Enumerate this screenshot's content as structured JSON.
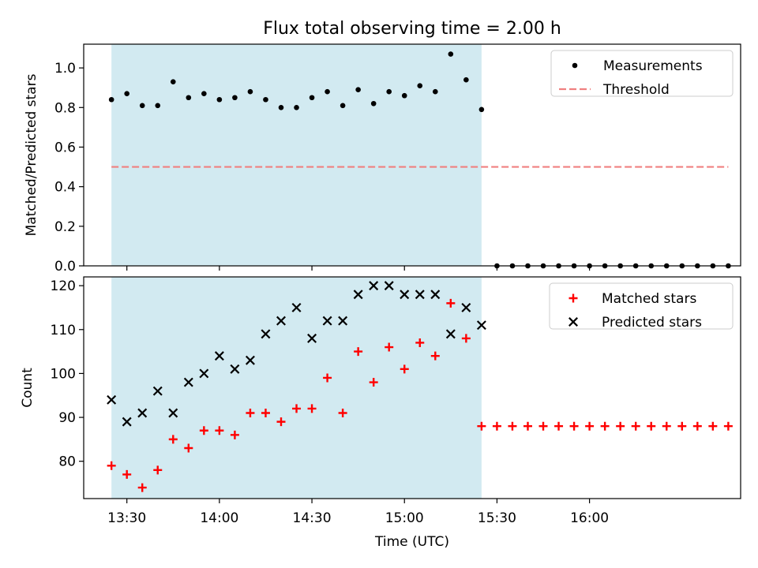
{
  "figure": {
    "title": "Flux total observing time = 2.00 h",
    "xlabel": "Time (UTC)",
    "x_ticks": [
      {
        "minutes": 810,
        "label": "13:30"
      },
      {
        "minutes": 840,
        "label": "14:00"
      },
      {
        "minutes": 870,
        "label": "14:30"
      },
      {
        "minutes": 900,
        "label": "15:00"
      },
      {
        "minutes": 930,
        "label": "15:30"
      },
      {
        "minutes": 960,
        "label": "16:00"
      }
    ],
    "x_range_minutes": [
      796,
      1009
    ],
    "observing_window_minutes": [
      805,
      925
    ],
    "colors": {
      "window": "#add8e6",
      "measurement": "#000000",
      "threshold": "#f08080",
      "matched": "#ff0000",
      "predicted": "#000000"
    }
  },
  "chart_data": [
    {
      "type": "scatter",
      "name": "ratio-panel",
      "ylabel": "Matched/Predicted stars",
      "ylim": [
        0,
        1.12
      ],
      "yticks": [
        {
          "value": 0.0,
          "label": "0.0"
        },
        {
          "value": 0.2,
          "label": "0.2"
        },
        {
          "value": 0.4,
          "label": "0.4"
        },
        {
          "value": 0.6,
          "label": "0.6"
        },
        {
          "value": 0.8,
          "label": "0.8"
        },
        {
          "value": 1.0,
          "label": "1.0"
        }
      ],
      "legend": {
        "position": "top-right",
        "entries": [
          {
            "marker": "dot",
            "label": "Measurements"
          },
          {
            "marker": "dash",
            "label": "Threshold"
          }
        ]
      },
      "threshold": {
        "value": 0.5,
        "x_range_minutes": [
          805,
          1005
        ]
      },
      "x_minutes": [
        805,
        810,
        815,
        820,
        825,
        830,
        835,
        840,
        845,
        850,
        855,
        860,
        865,
        870,
        875,
        880,
        885,
        890,
        895,
        900,
        905,
        910,
        915,
        920,
        925,
        930,
        935,
        940,
        945,
        950,
        955,
        960,
        965,
        970,
        975,
        980,
        985,
        990,
        995,
        1000,
        1005
      ],
      "measurements": [
        0.84,
        0.87,
        0.81,
        0.81,
        0.93,
        0.85,
        0.87,
        0.84,
        0.85,
        0.88,
        0.84,
        0.8,
        0.8,
        0.85,
        0.88,
        0.81,
        0.89,
        0.82,
        0.88,
        0.86,
        0.91,
        0.88,
        1.07,
        0.94,
        0.79,
        0.0,
        0.0,
        0.0,
        0.0,
        0.0,
        0.0,
        0.0,
        0.0,
        0.0,
        0.0,
        0.0,
        0.0,
        0.0,
        0.0,
        0.0,
        0.0
      ]
    },
    {
      "type": "scatter",
      "name": "count-panel",
      "ylabel": "Count",
      "ylim": [
        71.5,
        122
      ],
      "yticks": [
        {
          "value": 80,
          "label": "80"
        },
        {
          "value": 90,
          "label": "90"
        },
        {
          "value": 100,
          "label": "100"
        },
        {
          "value": 110,
          "label": "110"
        },
        {
          "value": 120,
          "label": "120"
        }
      ],
      "legend": {
        "position": "top-right",
        "entries": [
          {
            "marker": "plus",
            "label": "Matched stars"
          },
          {
            "marker": "x",
            "label": "Predicted stars"
          }
        ]
      },
      "x_minutes": [
        805,
        810,
        815,
        820,
        825,
        830,
        835,
        840,
        845,
        850,
        855,
        860,
        865,
        870,
        875,
        880,
        885,
        890,
        895,
        900,
        905,
        910,
        915,
        920,
        925,
        930,
        935,
        940,
        945,
        950,
        955,
        960,
        965,
        970,
        975,
        980,
        985,
        990,
        995,
        1000,
        1005
      ],
      "series": [
        {
          "name": "Matched stars",
          "values": [
            79,
            77,
            74,
            78,
            85,
            83,
            87,
            87,
            86,
            91,
            91,
            89,
            92,
            92,
            99,
            91,
            105,
            98,
            106,
            101,
            107,
            104,
            116,
            108,
            88,
            88,
            88,
            88,
            88,
            88,
            88,
            88,
            88,
            88,
            88,
            88,
            88,
            88,
            88,
            88,
            88
          ]
        },
        {
          "name": "Predicted stars",
          "values": [
            94,
            89,
            91,
            96,
            91,
            98,
            100,
            104,
            101,
            103,
            109,
            112,
            115,
            108,
            112,
            112,
            118,
            120,
            120,
            118,
            118,
            118,
            109,
            115,
            111,
            null,
            null,
            null,
            null,
            null,
            null,
            null,
            null,
            null,
            null,
            null,
            null,
            null,
            null,
            null,
            null
          ]
        }
      ]
    }
  ]
}
